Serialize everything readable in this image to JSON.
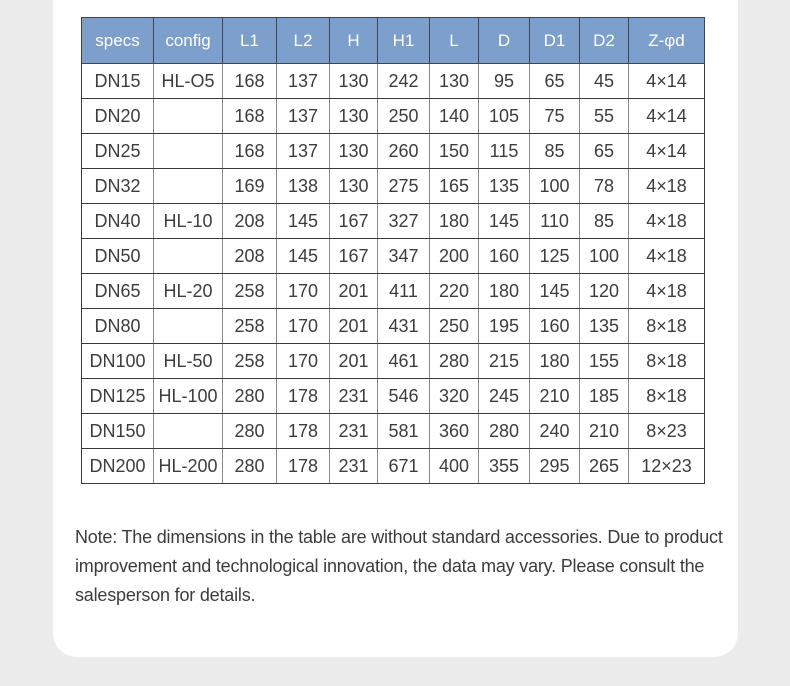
{
  "table": {
    "header_bg_color": "#7d9fcc",
    "header_text_color": "#ffffff",
    "columns": [
      "specs",
      "config",
      "L1",
      "L2",
      "H",
      "H1",
      "L",
      "D",
      "D1",
      "D2",
      "Z-φd"
    ],
    "rows": [
      {
        "specs": "DN15",
        "config": "HL-O5",
        "values": [
          "168",
          "137",
          "130",
          "242",
          "130",
          "95",
          "65",
          "45",
          "4×14"
        ]
      },
      {
        "specs": "DN20",
        "config": "",
        "values": [
          "168",
          "137",
          "130",
          "250",
          "140",
          "105",
          "75",
          "55",
          "4×14"
        ]
      },
      {
        "specs": "DN25",
        "config": "",
        "values": [
          "168",
          "137",
          "130",
          "260",
          "150",
          "115",
          "85",
          "65",
          "4×14"
        ]
      },
      {
        "specs": "DN32",
        "config": "",
        "values": [
          "169",
          "138",
          "130",
          "275",
          "165",
          "135",
          "100",
          "78",
          "4×18"
        ]
      },
      {
        "specs": "DN40",
        "config": "HL-10",
        "values": [
          "208",
          "145",
          "167",
          "327",
          "180",
          "145",
          "110",
          "85",
          "4×18"
        ]
      },
      {
        "specs": "DN50",
        "config": "",
        "values": [
          "208",
          "145",
          "167",
          "347",
          "200",
          "160",
          "125",
          "100",
          "4×18"
        ]
      },
      {
        "specs": "DN65",
        "config": "HL-20",
        "values": [
          "258",
          "170",
          "201",
          "411",
          "220",
          "180",
          "145",
          "120",
          "4×18"
        ]
      },
      {
        "specs": "DN80",
        "config": "",
        "values": [
          "258",
          "170",
          "201",
          "431",
          "250",
          "195",
          "160",
          "135",
          "8×18"
        ]
      },
      {
        "specs": "DN100",
        "config": "HL-50",
        "values": [
          "258",
          "170",
          "201",
          "461",
          "280",
          "215",
          "180",
          "155",
          "8×18"
        ]
      },
      {
        "specs": "DN125",
        "config": "HL-100",
        "values": [
          "280",
          "178",
          "231",
          "546",
          "320",
          "245",
          "210",
          "185",
          "8×18"
        ]
      },
      {
        "specs": "DN150",
        "config": "",
        "values": [
          "280",
          "178",
          "231",
          "581",
          "360",
          "280",
          "240",
          "210",
          "8×23"
        ]
      },
      {
        "specs": "DN200",
        "config": "HL-200",
        "values": [
          "280",
          "178",
          "231",
          "671",
          "400",
          "355",
          "295",
          "265",
          "12×23"
        ]
      }
    ]
  },
  "note": "Note: The dimensions in the table are without standard accessories. Due to product improvement and technological innovation, the data may vary. Please consult the salesperson for details."
}
